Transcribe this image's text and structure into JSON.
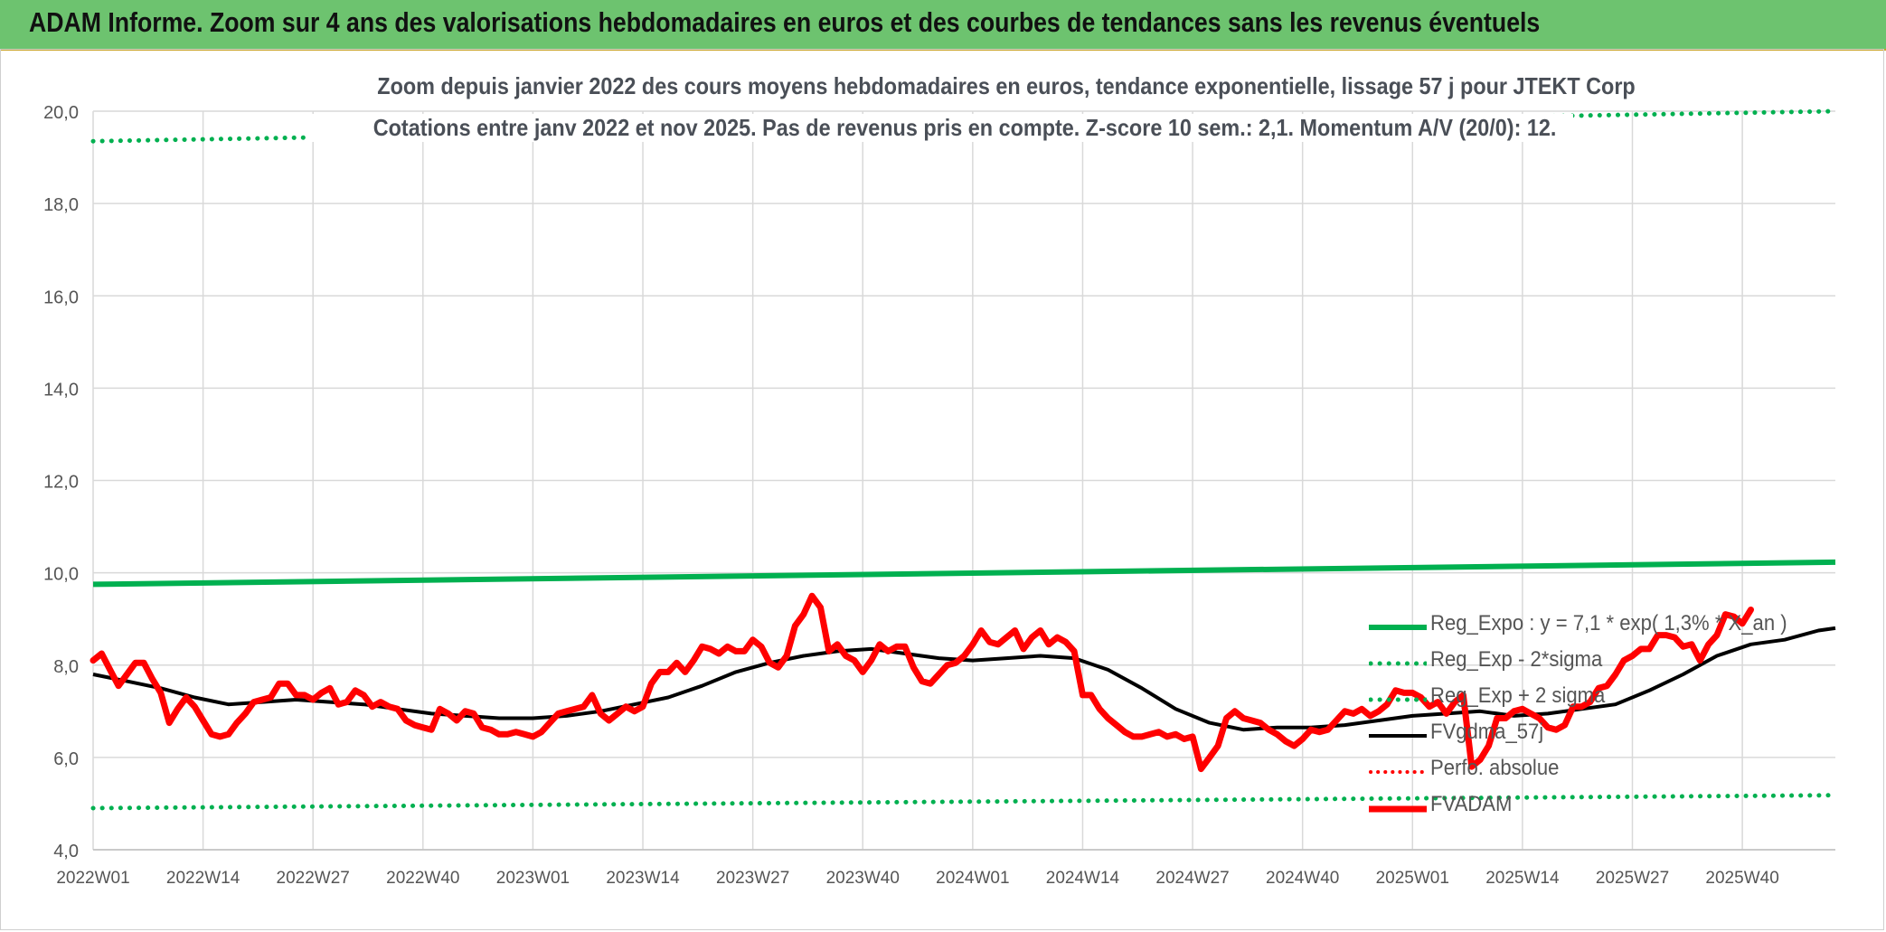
{
  "banner": {
    "title": "ADAM Informe. Zoom sur 4 ans des valorisations hebdomadaires en euros et des courbes de tendances sans les revenus éventuels"
  },
  "colors": {
    "banner_bg": "#6dc36f",
    "reg_expo": "#00b050",
    "sigma_bands": "#00b050",
    "fvgdma": "#000000",
    "perfo": "#ff0000",
    "fvadam": "#ff0000",
    "grid": "#d9d9d9"
  },
  "chart_data": {
    "type": "line",
    "title": "Zoom depuis janvier 2022 des cours moyens hebdomadaires en euros, tendance exponentielle, lissage 57 j pour JTEKT Corp",
    "subtitle": "Cotations entre janv 2022 et nov 2025. Pas de revenus pris en compte. Z-score 10 sem.: 2,1. Momentum A/V (20/0): 12.",
    "ylim": [
      4.0,
      20.0
    ],
    "y_ticks": [
      "4,0",
      "6,0",
      "8,0",
      "10,0",
      "12,0",
      "14,0",
      "16,0",
      "18,0",
      "20,0"
    ],
    "x_range_weeks": [
      0,
      206
    ],
    "x_ticks": [
      {
        "label": "2022W01",
        "week": 0
      },
      {
        "label": "2022W14",
        "week": 13
      },
      {
        "label": "2022W27",
        "week": 26
      },
      {
        "label": "2022W40",
        "week": 39
      },
      {
        "label": "2023W01",
        "week": 52
      },
      {
        "label": "2023W14",
        "week": 65
      },
      {
        "label": "2023W27",
        "week": 78
      },
      {
        "label": "2023W40",
        "week": 91
      },
      {
        "label": "2024W01",
        "week": 104
      },
      {
        "label": "2024W14",
        "week": 117
      },
      {
        "label": "2024W27",
        "week": 130
      },
      {
        "label": "2024W40",
        "week": 143
      },
      {
        "label": "2025W01",
        "week": 156
      },
      {
        "label": "2025W14",
        "week": 169
      },
      {
        "label": "2025W27",
        "week": 182
      },
      {
        "label": "2025W40",
        "week": 195
      }
    ],
    "grid": true,
    "legend_position": "lower-right",
    "series": [
      {
        "name": "Reg_Expo : y = 7,1 * exp( 1,3% * X_an )",
        "style": "solid-green",
        "points": [
          [
            0,
            9.75
          ],
          [
            206,
            10.23
          ]
        ]
      },
      {
        "name": "Reg_Exp - 2*sigma",
        "style": "dotted-green",
        "points": [
          [
            0,
            4.9
          ],
          [
            206,
            5.18
          ]
        ]
      },
      {
        "name": "Reg_Exp + 2 sigma",
        "style": "dotted-green",
        "points": [
          [
            0,
            19.35
          ],
          [
            206,
            20.0
          ]
        ]
      },
      {
        "name": "FVgdma_57j",
        "style": "solid-black",
        "points": [
          [
            0,
            7.8
          ],
          [
            4,
            7.65
          ],
          [
            8,
            7.5
          ],
          [
            12,
            7.3
          ],
          [
            16,
            7.15
          ],
          [
            20,
            7.2
          ],
          [
            24,
            7.25
          ],
          [
            28,
            7.2
          ],
          [
            32,
            7.15
          ],
          [
            36,
            7.05
          ],
          [
            40,
            6.95
          ],
          [
            44,
            6.9
          ],
          [
            48,
            6.85
          ],
          [
            52,
            6.85
          ],
          [
            56,
            6.9
          ],
          [
            60,
            7.0
          ],
          [
            64,
            7.15
          ],
          [
            68,
            7.3
          ],
          [
            72,
            7.55
          ],
          [
            76,
            7.85
          ],
          [
            80,
            8.05
          ],
          [
            84,
            8.2
          ],
          [
            88,
            8.3
          ],
          [
            92,
            8.35
          ],
          [
            96,
            8.25
          ],
          [
            100,
            8.15
          ],
          [
            104,
            8.1
          ],
          [
            108,
            8.15
          ],
          [
            112,
            8.2
          ],
          [
            116,
            8.15
          ],
          [
            120,
            7.9
          ],
          [
            124,
            7.5
          ],
          [
            128,
            7.05
          ],
          [
            132,
            6.75
          ],
          [
            136,
            6.6
          ],
          [
            140,
            6.65
          ],
          [
            144,
            6.65
          ],
          [
            148,
            6.7
          ],
          [
            152,
            6.8
          ],
          [
            156,
            6.9
          ],
          [
            160,
            6.95
          ],
          [
            164,
            7.0
          ],
          [
            168,
            6.9
          ],
          [
            172,
            6.95
          ],
          [
            176,
            7.05
          ],
          [
            180,
            7.15
          ],
          [
            184,
            7.45
          ],
          [
            188,
            7.8
          ],
          [
            192,
            8.2
          ],
          [
            196,
            8.45
          ],
          [
            200,
            8.55
          ],
          [
            204,
            8.75
          ],
          [
            206,
            8.8
          ]
        ]
      },
      {
        "name": "Perfo. absolue",
        "style": "dotted-red",
        "points": []
      },
      {
        "name": "FVADAM",
        "style": "solid-red-thick",
        "points": [
          [
            0,
            8.1
          ],
          [
            1,
            8.25
          ],
          [
            2,
            7.9
          ],
          [
            3,
            7.55
          ],
          [
            4,
            7.8
          ],
          [
            5,
            8.05
          ],
          [
            6,
            8.05
          ],
          [
            7,
            7.7
          ],
          [
            8,
            7.4
          ],
          [
            9,
            6.75
          ],
          [
            10,
            7.05
          ],
          [
            11,
            7.3
          ],
          [
            12,
            7.1
          ],
          [
            13,
            6.8
          ],
          [
            14,
            6.5
          ],
          [
            15,
            6.45
          ],
          [
            16,
            6.5
          ],
          [
            17,
            6.75
          ],
          [
            18,
            6.95
          ],
          [
            19,
            7.2
          ],
          [
            20,
            7.25
          ],
          [
            21,
            7.3
          ],
          [
            22,
            7.6
          ],
          [
            23,
            7.6
          ],
          [
            24,
            7.35
          ],
          [
            25,
            7.35
          ],
          [
            26,
            7.25
          ],
          [
            27,
            7.4
          ],
          [
            28,
            7.5
          ],
          [
            29,
            7.15
          ],
          [
            30,
            7.2
          ],
          [
            31,
            7.45
          ],
          [
            32,
            7.35
          ],
          [
            33,
            7.1
          ],
          [
            34,
            7.2
          ],
          [
            35,
            7.1
          ],
          [
            36,
            7.05
          ],
          [
            37,
            6.8
          ],
          [
            38,
            6.7
          ],
          [
            39,
            6.65
          ],
          [
            40,
            6.6
          ],
          [
            41,
            7.05
          ],
          [
            42,
            6.95
          ],
          [
            43,
            6.8
          ],
          [
            44,
            7.0
          ],
          [
            45,
            6.95
          ],
          [
            46,
            6.65
          ],
          [
            47,
            6.6
          ],
          [
            48,
            6.5
          ],
          [
            49,
            6.5
          ],
          [
            50,
            6.55
          ],
          [
            51,
            6.5
          ],
          [
            52,
            6.45
          ],
          [
            53,
            6.55
          ],
          [
            54,
            6.75
          ],
          [
            55,
            6.95
          ],
          [
            56,
            7.0
          ],
          [
            57,
            7.05
          ],
          [
            58,
            7.1
          ],
          [
            59,
            7.35
          ],
          [
            60,
            6.95
          ],
          [
            61,
            6.8
          ],
          [
            62,
            6.95
          ],
          [
            63,
            7.1
          ],
          [
            64,
            7.0
          ],
          [
            65,
            7.1
          ],
          [
            66,
            7.6
          ],
          [
            67,
            7.85
          ],
          [
            68,
            7.85
          ],
          [
            69,
            8.05
          ],
          [
            70,
            7.85
          ],
          [
            71,
            8.1
          ],
          [
            72,
            8.4
          ],
          [
            73,
            8.35
          ],
          [
            74,
            8.25
          ],
          [
            75,
            8.4
          ],
          [
            76,
            8.3
          ],
          [
            77,
            8.3
          ],
          [
            78,
            8.55
          ],
          [
            79,
            8.4
          ],
          [
            80,
            8.05
          ],
          [
            81,
            7.95
          ],
          [
            82,
            8.2
          ],
          [
            83,
            8.85
          ],
          [
            84,
            9.1
          ],
          [
            85,
            9.5
          ],
          [
            86,
            9.25
          ],
          [
            87,
            8.3
          ],
          [
            88,
            8.45
          ],
          [
            89,
            8.2
          ],
          [
            90,
            8.1
          ],
          [
            91,
            7.85
          ],
          [
            92,
            8.1
          ],
          [
            93,
            8.45
          ],
          [
            94,
            8.3
          ],
          [
            95,
            8.4
          ],
          [
            96,
            8.4
          ],
          [
            97,
            7.95
          ],
          [
            98,
            7.65
          ],
          [
            99,
            7.6
          ],
          [
            100,
            7.8
          ],
          [
            101,
            8.0
          ],
          [
            102,
            8.05
          ],
          [
            103,
            8.2
          ],
          [
            104,
            8.45
          ],
          [
            105,
            8.75
          ],
          [
            106,
            8.5
          ],
          [
            107,
            8.45
          ],
          [
            108,
            8.6
          ],
          [
            109,
            8.75
          ],
          [
            110,
            8.35
          ],
          [
            111,
            8.6
          ],
          [
            112,
            8.75
          ],
          [
            113,
            8.45
          ],
          [
            114,
            8.6
          ],
          [
            115,
            8.5
          ],
          [
            116,
            8.3
          ],
          [
            117,
            7.35
          ],
          [
            118,
            7.35
          ],
          [
            119,
            7.05
          ],
          [
            120,
            6.85
          ],
          [
            121,
            6.7
          ],
          [
            122,
            6.55
          ],
          [
            123,
            6.45
          ],
          [
            124,
            6.45
          ],
          [
            125,
            6.5
          ],
          [
            126,
            6.55
          ],
          [
            127,
            6.45
          ],
          [
            128,
            6.5
          ],
          [
            129,
            6.4
          ],
          [
            130,
            6.45
          ],
          [
            131,
            5.75
          ],
          [
            132,
            6.0
          ],
          [
            133,
            6.25
          ],
          [
            134,
            6.85
          ],
          [
            135,
            7.0
          ],
          [
            136,
            6.85
          ],
          [
            137,
            6.8
          ],
          [
            138,
            6.75
          ],
          [
            139,
            6.6
          ],
          [
            140,
            6.5
          ],
          [
            141,
            6.35
          ],
          [
            142,
            6.25
          ],
          [
            143,
            6.4
          ],
          [
            144,
            6.6
          ],
          [
            145,
            6.55
          ],
          [
            146,
            6.6
          ],
          [
            147,
            6.8
          ],
          [
            148,
            7.0
          ],
          [
            149,
            6.95
          ],
          [
            150,
            7.05
          ],
          [
            151,
            6.9
          ],
          [
            152,
            7.0
          ],
          [
            153,
            7.15
          ],
          [
            154,
            7.45
          ],
          [
            155,
            7.4
          ],
          [
            156,
            7.4
          ],
          [
            157,
            7.3
          ],
          [
            158,
            7.1
          ],
          [
            159,
            7.2
          ],
          [
            160,
            6.95
          ],
          [
            161,
            7.2
          ],
          [
            162,
            7.35
          ],
          [
            163,
            5.8
          ],
          [
            164,
            5.95
          ],
          [
            165,
            6.25
          ],
          [
            166,
            6.85
          ],
          [
            167,
            6.85
          ],
          [
            168,
            7.0
          ],
          [
            169,
            7.05
          ],
          [
            170,
            6.95
          ],
          [
            171,
            6.85
          ],
          [
            172,
            6.65
          ],
          [
            173,
            6.6
          ],
          [
            174,
            6.7
          ],
          [
            175,
            7.1
          ],
          [
            176,
            7.1
          ],
          [
            177,
            7.2
          ],
          [
            178,
            7.5
          ],
          [
            179,
            7.55
          ],
          [
            180,
            7.8
          ],
          [
            181,
            8.1
          ],
          [
            182,
            8.2
          ],
          [
            183,
            8.35
          ],
          [
            184,
            8.35
          ],
          [
            185,
            8.65
          ],
          [
            186,
            8.65
          ],
          [
            187,
            8.6
          ],
          [
            188,
            8.4
          ],
          [
            189,
            8.45
          ],
          [
            190,
            8.1
          ],
          [
            191,
            8.45
          ],
          [
            192,
            8.65
          ],
          [
            193,
            9.1
          ],
          [
            194,
            9.05
          ],
          [
            195,
            8.9
          ],
          [
            196,
            9.2
          ]
        ]
      }
    ]
  }
}
